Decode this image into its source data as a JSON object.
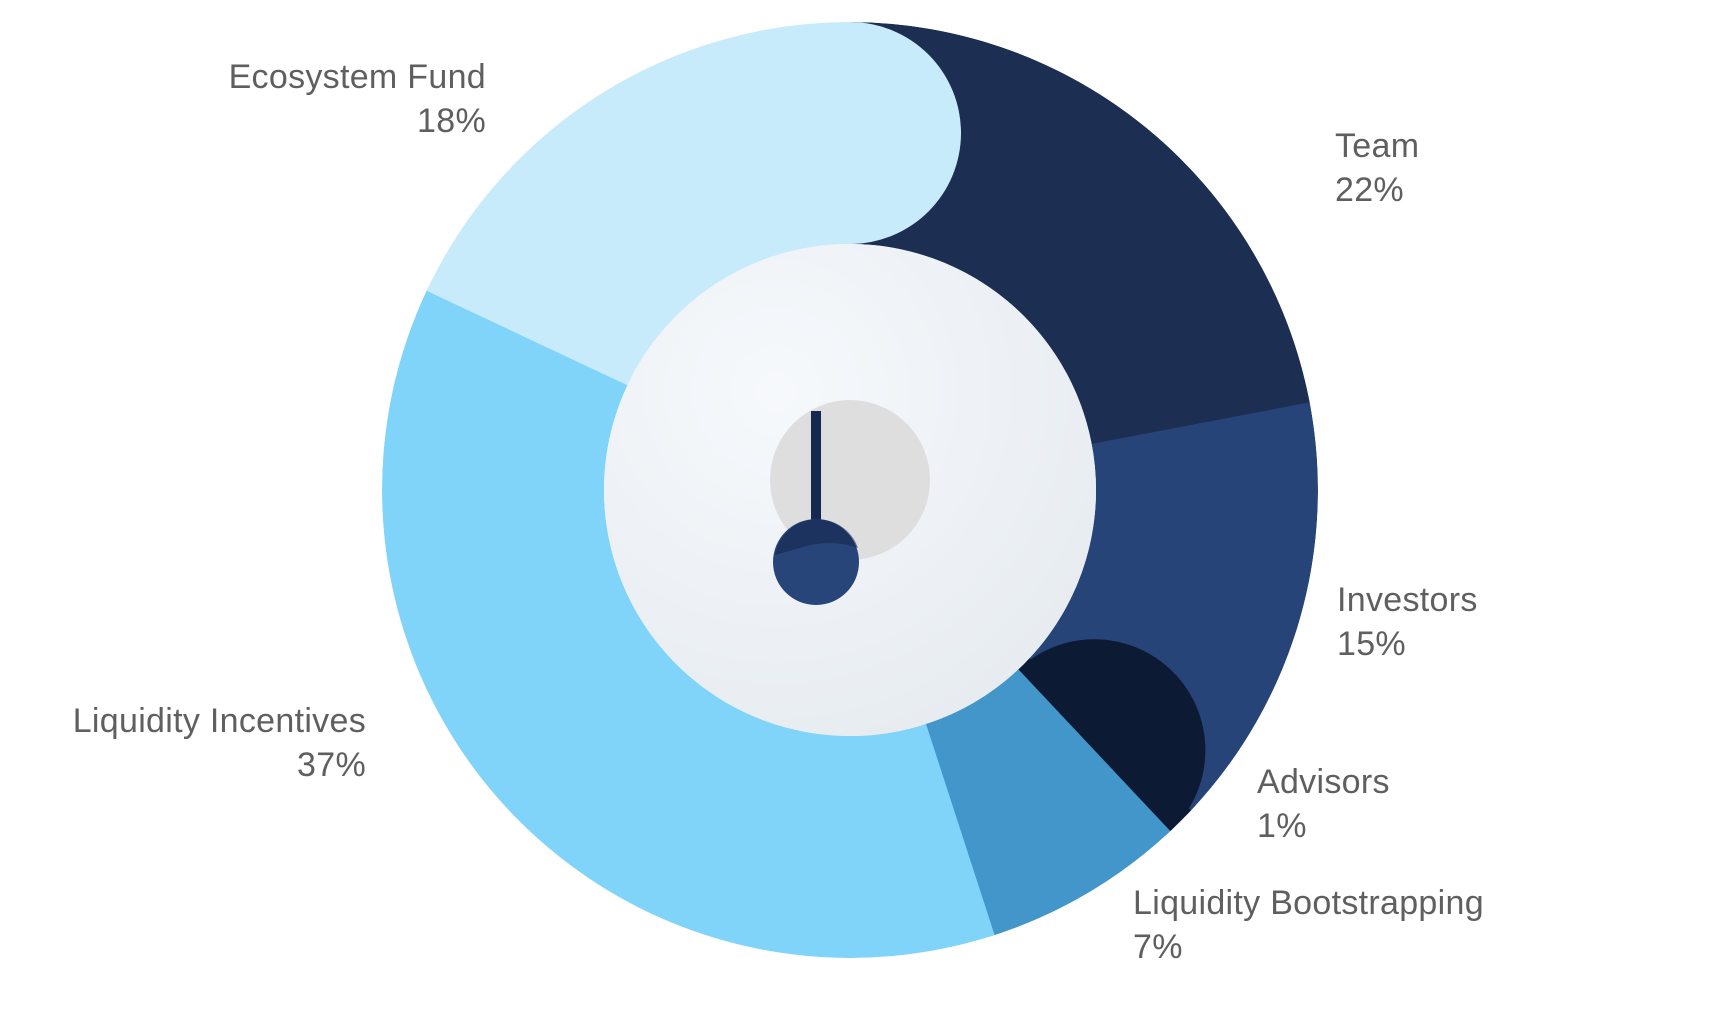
{
  "chart_data": {
    "type": "pie",
    "variant": "donut",
    "categories": [
      "Team",
      "Investors",
      "Advisors",
      "Liquidity Bootstrapping",
      "Liquidity Incentives",
      "Ecosystem Fund"
    ],
    "values": [
      22,
      15,
      1,
      7,
      37,
      18
    ],
    "percent_labels": [
      "22%",
      "15%",
      "1%",
      "7%",
      "37%",
      "18%"
    ],
    "colors": [
      "#1c2e51",
      "#274478",
      "#0d1a33",
      "#4396c9",
      "#80d4fa",
      "#c8ebfb"
    ],
    "center_colors": {
      "hole": "#eef3f8",
      "dial": "#dedede",
      "needle": "#15284f",
      "knob": "#284579"
    },
    "title": "",
    "legend": "none",
    "label_placement": "outside, next to each slice"
  }
}
